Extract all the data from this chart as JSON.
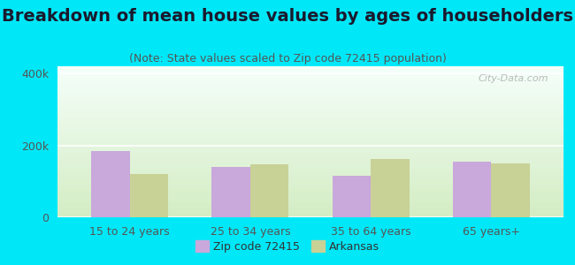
{
  "title": "Breakdown of mean house values by ages of householders",
  "subtitle": "(Note: State values scaled to Zip code 72415 population)",
  "categories": [
    "15 to 24 years",
    "25 to 34 years",
    "35 to 64 years",
    "65 years+"
  ],
  "zip_values": [
    185000,
    140000,
    115000,
    155000
  ],
  "state_values": [
    120000,
    148000,
    162000,
    150000
  ],
  "zip_color": "#c9a8dc",
  "state_color": "#c8d196",
  "background_outer": "#00e8f8",
  "background_plot_top": "#f5fffa",
  "background_plot_bottom": "#d4edc4",
  "ylim": [
    0,
    420000
  ],
  "yticks": [
    0,
    200000,
    400000
  ],
  "ytick_labels": [
    "0",
    "200k",
    "400k"
  ],
  "legend_zip": "Zip code 72415",
  "legend_state": "Arkansas",
  "title_fontsize": 14,
  "subtitle_fontsize": 9,
  "axis_fontsize": 9,
  "watermark": "City-Data.com"
}
